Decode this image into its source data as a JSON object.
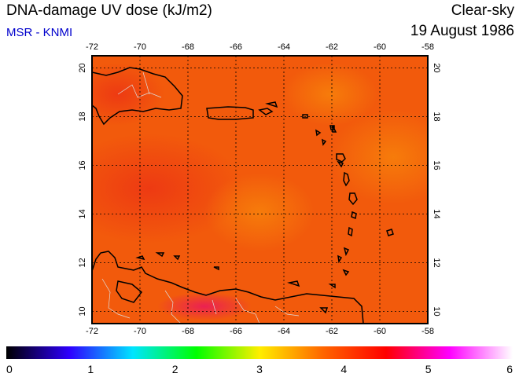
{
  "header": {
    "title": "DNA-damage UV dose (kJ/m2)",
    "source": "MSR - KNMI",
    "sky_condition": "Clear-sky",
    "date": "19 August 1986"
  },
  "map": {
    "lon_range": [
      -72,
      -58
    ],
    "lat_range": [
      9.5,
      20.5
    ],
    "lon_ticks": [
      "-72",
      "-70",
      "-68",
      "-66",
      "-64",
      "-62",
      "-60",
      "-58"
    ],
    "lat_ticks": [
      "10",
      "12",
      "14",
      "16",
      "18",
      "20"
    ],
    "field_color": "#f25a0c",
    "region": "Caribbean Sea / Lesser Antilles"
  },
  "colorbar": {
    "min": 0,
    "max": 6,
    "tick_labels": [
      "0",
      "1",
      "2",
      "3",
      "4",
      "5",
      "6"
    ],
    "colors": [
      "#000000",
      "#2e00ff",
      "#00e5ff",
      "#00ff00",
      "#ffee00",
      "#ff6600",
      "#ff0000",
      "#ff00ff",
      "#ffffff"
    ]
  }
}
